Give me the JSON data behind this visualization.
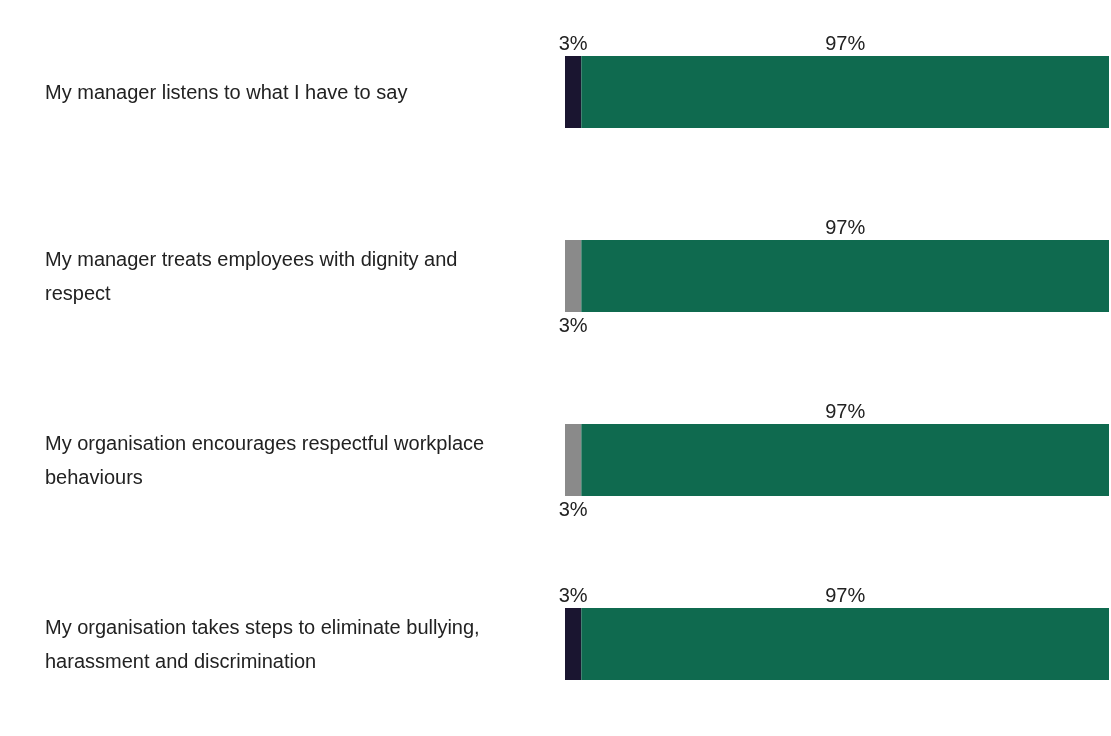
{
  "chart_data": {
    "type": "bar",
    "orientation": "horizontal",
    "stacked": true,
    "categories": [
      "My manager listens to what I have to say",
      "My manager treats employees with dignity and respect",
      "My organisation encourages respectful workplace behaviours",
      "My organisation takes steps to eliminate bullying, harassment and discrimination"
    ],
    "series": [
      {
        "colors": [
          "#1a1530",
          "#8a8a8a",
          "#8a8a8a",
          "#1a1530"
        ],
        "values": [
          3,
          3,
          3,
          3
        ],
        "value_labels": [
          "3%",
          "3%",
          "3%",
          "3%"
        ]
      },
      {
        "color": "#0f6a4f",
        "values": [
          97,
          97,
          97,
          97
        ],
        "value_labels": [
          "97%",
          "97%",
          "97%",
          "97%"
        ]
      }
    ]
  }
}
